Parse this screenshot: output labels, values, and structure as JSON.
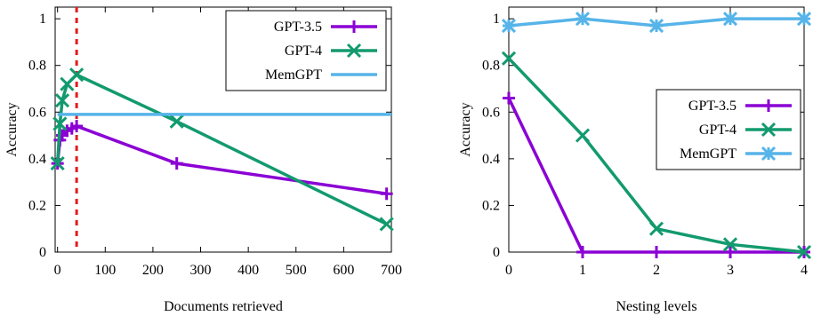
{
  "colors": {
    "gpt35": "#8b00d4",
    "gpt4": "#129a6e",
    "memgpt": "#56b4e9",
    "marker_line": "#e41a1c"
  },
  "chart_data": [
    {
      "type": "line",
      "xlabel": "Documents retrieved",
      "ylabel": "Accuracy",
      "xlim": [
        -5,
        700
      ],
      "ylim": [
        0,
        1.05
      ],
      "xticks": [
        0,
        100,
        200,
        300,
        400,
        500,
        600,
        700
      ],
      "yticks": [
        0,
        0.2,
        0.4,
        0.6,
        0.8,
        1
      ],
      "grid": false,
      "legend_position": "top-right",
      "vertical_marker": {
        "x": 40,
        "style": "dashed"
      },
      "series": [
        {
          "name": "GPT-3.5",
          "color_key": "gpt35",
          "marker": "plus",
          "x": [
            0,
            5,
            10,
            20,
            30,
            40,
            250,
            690
          ],
          "y": [
            0.38,
            0.48,
            0.5,
            0.52,
            0.53,
            0.54,
            0.38,
            0.25
          ]
        },
        {
          "name": "GPT-4",
          "color_key": "gpt4",
          "marker": "x",
          "x": [
            0,
            5,
            10,
            20,
            40,
            250,
            690
          ],
          "y": [
            0.38,
            0.55,
            0.65,
            0.72,
            0.76,
            0.56,
            0.12
          ]
        },
        {
          "name": "MemGPT",
          "color_key": "memgpt",
          "marker": "none",
          "x": [
            0,
            700
          ],
          "y": [
            0.59,
            0.59
          ]
        }
      ]
    },
    {
      "type": "line",
      "xlabel": "Nesting levels",
      "ylabel": "Accuracy",
      "xlim": [
        0,
        4
      ],
      "ylim": [
        0,
        1.05
      ],
      "xticks": [
        0,
        1,
        2,
        3,
        4
      ],
      "yticks": [
        0,
        0.2,
        0.4,
        0.6,
        0.8,
        1
      ],
      "grid": false,
      "legend_position": "right",
      "series": [
        {
          "name": "GPT-3.5",
          "color_key": "gpt35",
          "marker": "plus",
          "x": [
            0,
            1,
            2,
            3,
            4
          ],
          "y": [
            0.66,
            0,
            0,
            0,
            0
          ]
        },
        {
          "name": "GPT-4",
          "color_key": "gpt4",
          "marker": "x",
          "x": [
            0,
            1,
            2,
            3,
            4
          ],
          "y": [
            0.83,
            0.5,
            0.1,
            0.033,
            0
          ]
        },
        {
          "name": "MemGPT",
          "color_key": "memgpt",
          "marker": "star",
          "x": [
            0,
            1,
            2,
            3,
            4
          ],
          "y": [
            0.97,
            1.0,
            0.97,
            1.0,
            1.0
          ]
        }
      ]
    }
  ]
}
